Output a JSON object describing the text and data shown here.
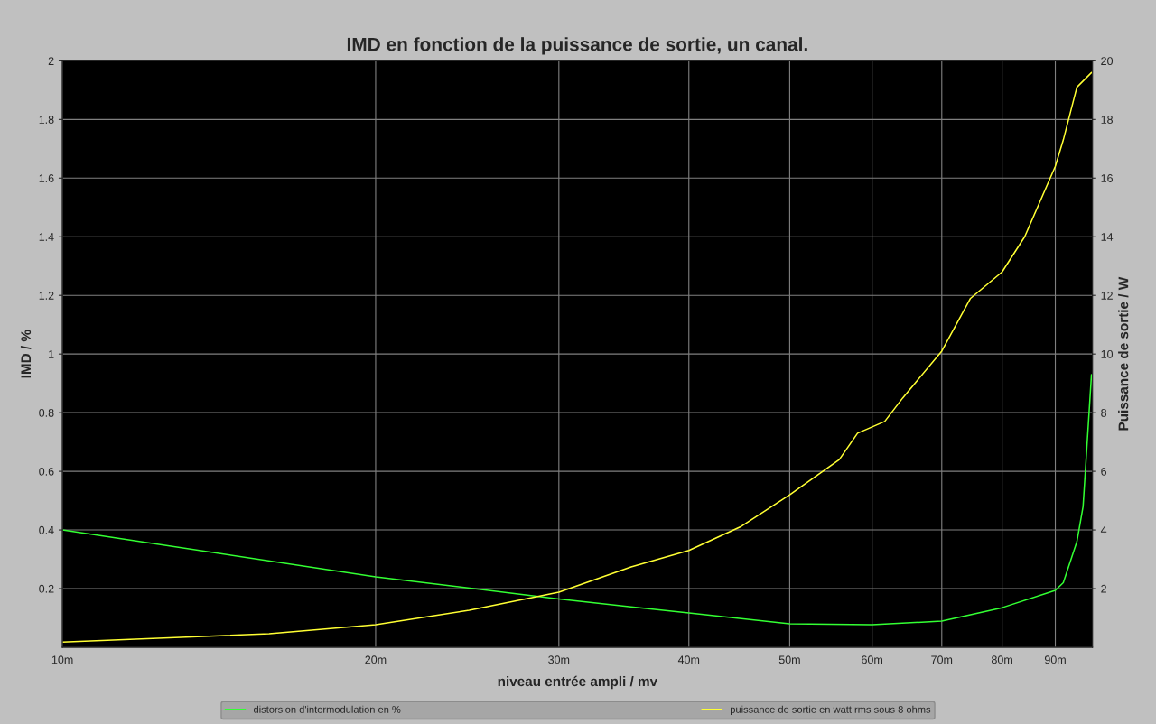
{
  "chart_data": {
    "type": "line",
    "title": "IMD en fonction de la puissance de sortie, un canal.",
    "xlabel": "niveau entrée ampli / mv",
    "ylabel": "IMD / %",
    "y2label": "Puissance de sortie / W",
    "log": "x",
    "xlim": [
      10,
      97.7
    ],
    "xticks": [
      {
        "value": 10,
        "label": "10m"
      },
      {
        "value": 20,
        "label": "20m"
      },
      {
        "value": 30,
        "label": "30m"
      },
      {
        "value": 40,
        "label": "40m"
      },
      {
        "value": 50,
        "label": "50m"
      },
      {
        "value": 60,
        "label": "60m"
      },
      {
        "value": 70,
        "label": "70m"
      },
      {
        "value": 80,
        "label": "80m"
      },
      {
        "value": 90,
        "label": "90m"
      }
    ],
    "ylim": [
      0,
      2
    ],
    "yticks": [
      0.2,
      0.4,
      0.6,
      0.8,
      1,
      1.2,
      1.4,
      1.6,
      1.8,
      2
    ],
    "y2lim": [
      0,
      20
    ],
    "y2ticks": [
      2,
      4,
      6,
      8,
      10,
      12,
      14,
      16,
      18,
      20
    ],
    "grid": true,
    "legend": "bottom",
    "line_style": "solid",
    "marker": "none",
    "series": [
      {
        "name": "distorsion d'intermodulation en %",
        "color": "#33ff33",
        "x": [
          10,
          20,
          30,
          35.2,
          40,
          50,
          60,
          70,
          80,
          90,
          91.6,
          94.4,
          95.7,
          96.7,
          97.5
        ],
        "values": [
          0.4,
          0.24,
          0.165,
          0.138,
          0.117,
          0.08,
          0.077,
          0.089,
          0.135,
          0.194,
          0.22,
          0.36,
          0.48,
          0.73,
          0.93
        ]
      },
      {
        "name": "puissance de sortie en watt rms sous 8 ohms",
        "color": "#ffff33",
        "axis": "y2",
        "x": [
          10,
          15.8,
          20,
          24.6,
          30,
          35.2,
          40,
          44.8,
          50,
          55.8,
          58.1,
          61.7,
          64.2,
          70,
          74.6,
          80,
          84.1,
          90,
          91.6,
          94.4,
          97.5
        ],
        "values": [
          0.18,
          0.46,
          0.77,
          1.26,
          1.88,
          2.74,
          3.3,
          4.1,
          5.2,
          6.4,
          7.3,
          7.7,
          8.5,
          10.1,
          11.9,
          12.8,
          14.0,
          16.4,
          17.3,
          19.1,
          19.6
        ]
      }
    ]
  }
}
